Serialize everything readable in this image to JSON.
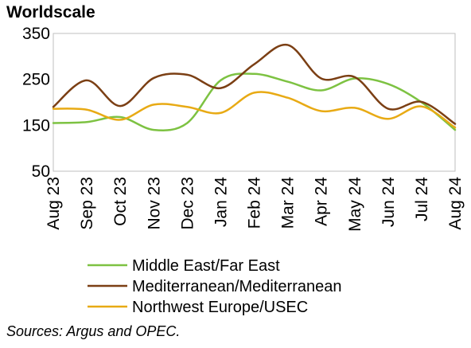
{
  "chart_data": {
    "type": "line",
    "ylabel": "Worldscale",
    "ylim": [
      50,
      350
    ],
    "yticks": [
      50,
      150,
      250,
      350
    ],
    "grid": false,
    "legend_position": "bottom",
    "categories": [
      "Aug 23",
      "Sep 23",
      "Oct 23",
      "Nov 23",
      "Dec 23",
      "Jan 24",
      "Feb 24",
      "Mar 24",
      "Apr 24",
      "May 24",
      "Jun 24",
      "Jul 24",
      "Aug 24"
    ],
    "series": [
      {
        "name": "Middle East/Far East",
        "color": "#7DC242",
        "values": [
          155,
          157,
          168,
          140,
          155,
          248,
          262,
          245,
          226,
          252,
          240,
          200,
          140
        ]
      },
      {
        "name": "Mediterranean/Mediterranean",
        "color": "#7B3F14",
        "values": [
          190,
          248,
          192,
          253,
          260,
          231,
          283,
          325,
          252,
          255,
          186,
          201,
          153
        ]
      },
      {
        "name": "Northwest Europe/USEC",
        "color": "#E8AA14",
        "values": [
          186,
          184,
          162,
          195,
          190,
          177,
          221,
          210,
          181,
          188,
          164,
          191,
          145
        ]
      }
    ],
    "source": "Sources: Argus and OPEC."
  }
}
